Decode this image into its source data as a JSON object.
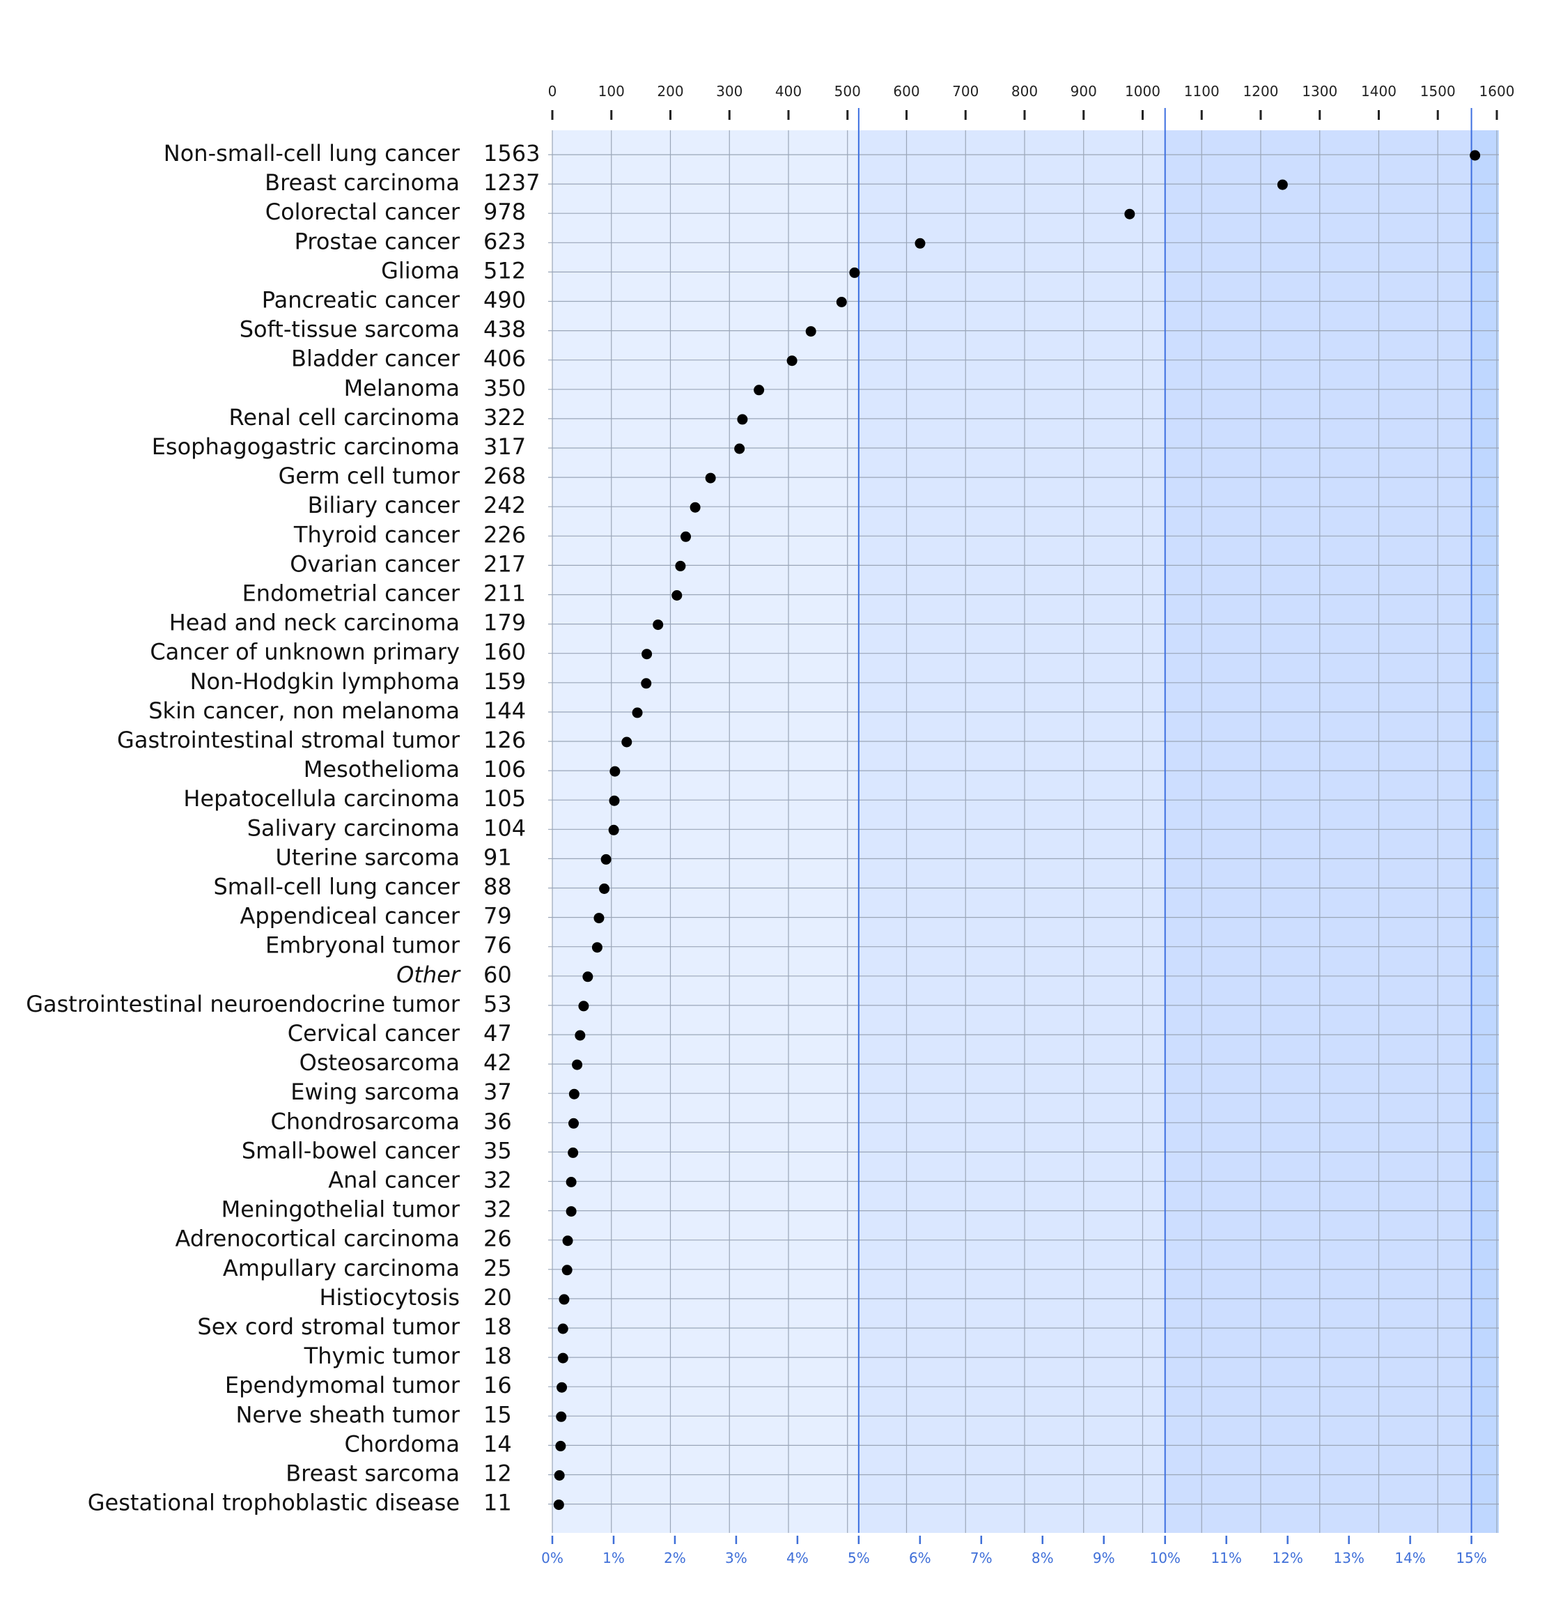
{
  "chart_data": {
    "type": "scatter",
    "categories": [
      "Non-small-cell lung cancer",
      "Breast carcinoma",
      "Colorectal cancer",
      "Prostae cancer",
      "Glioma",
      "Pancreatic cancer",
      "Soft-tissue sarcoma",
      "Bladder cancer",
      "Melanoma",
      "Renal cell carcinoma",
      "Esophagogastric carcinoma",
      "Germ cell tumor",
      "Biliary cancer",
      "Thyroid cancer",
      "Ovarian cancer",
      "Endometrial cancer",
      "Head and neck carcinoma",
      "Cancer of unknown primary",
      "Non-Hodgkin lymphoma",
      "Skin cancer, non melanoma",
      "Gastrointestinal stromal tumor",
      "Mesothelioma",
      "Hepatocellula carcinoma",
      "Salivary carcinoma",
      "Uterine sarcoma",
      "Small-cell lung cancer",
      "Appendiceal cancer",
      "Embryonal tumor",
      "Other",
      "Gastrointestinal neuroendocrine tumor",
      "Cervical cancer",
      "Osteosarcoma",
      "Ewing sarcoma",
      "Chondrosarcoma",
      "Small-bowel cancer",
      "Anal cancer",
      "Meningothelial tumor",
      "Adrenocortical carcinoma",
      "Ampullary carcinoma",
      "Histiocytosis",
      "Sex cord stromal tumor",
      "Thymic tumor",
      "Ependymomal tumor",
      "Nerve sheath tumor",
      "Chordoma",
      "Breast sarcoma",
      "Gestational trophoblastic disease"
    ],
    "values": [
      1563,
      1237,
      978,
      623,
      512,
      490,
      438,
      406,
      350,
      322,
      317,
      268,
      242,
      226,
      217,
      211,
      179,
      160,
      159,
      144,
      126,
      106,
      105,
      104,
      91,
      88,
      79,
      76,
      60,
      53,
      47,
      42,
      37,
      36,
      35,
      32,
      32,
      26,
      25,
      20,
      18,
      18,
      16,
      15,
      14,
      12,
      11
    ],
    "value_labels": [
      "1563",
      "1237",
      "978",
      "623",
      "512",
      "490",
      "438",
      "406",
      "350",
      "322",
      "317",
      "268",
      "242",
      "226",
      "217",
      "211",
      "179",
      "160",
      "159",
      "144",
      "126",
      "106",
      "105",
      "104",
      "91",
      "88",
      "79",
      "76",
      "60",
      "53",
      "47",
      "42",
      "37",
      "36",
      "35",
      "32",
      "32",
      "26",
      "25",
      "20",
      "18",
      "18",
      "16",
      "15",
      "14",
      "12",
      "11"
    ],
    "italic_categories": [
      "Other"
    ],
    "xlim": [
      0,
      1620
    ],
    "x_ticks_top": [
      "0",
      "100",
      "200",
      "300",
      "400",
      "500",
      "600",
      "700",
      "800",
      "900",
      "1000",
      "1100",
      "1200",
      "1300",
      "1400",
      "1500",
      "1600"
    ],
    "x_ticks_top_values": [
      0,
      100,
      200,
      300,
      400,
      500,
      600,
      700,
      800,
      900,
      1000,
      1100,
      1200,
      1300,
      1400,
      1500,
      1600
    ],
    "x_ticks_bottom": [
      "0%",
      "1%",
      "2%",
      "3%",
      "4%",
      "5%",
      "6%",
      "7%",
      "8%",
      "9%",
      "10%",
      "11%",
      "12%",
      "13%",
      "14%",
      "15%"
    ],
    "percent_per_count": 0.0096339,
    "band_boundaries_percent": [
      5,
      10,
      15
    ],
    "band_colors": [
      "#e6efff",
      "#dae7ff",
      "#cddeff",
      "#bfd7ff"
    ],
    "grid": true,
    "grid_color": "#9aa6b8",
    "band_line_color": "#3d6fe0",
    "marker_color": "#000000",
    "bottom_tick_color": "#3f6fd8"
  }
}
